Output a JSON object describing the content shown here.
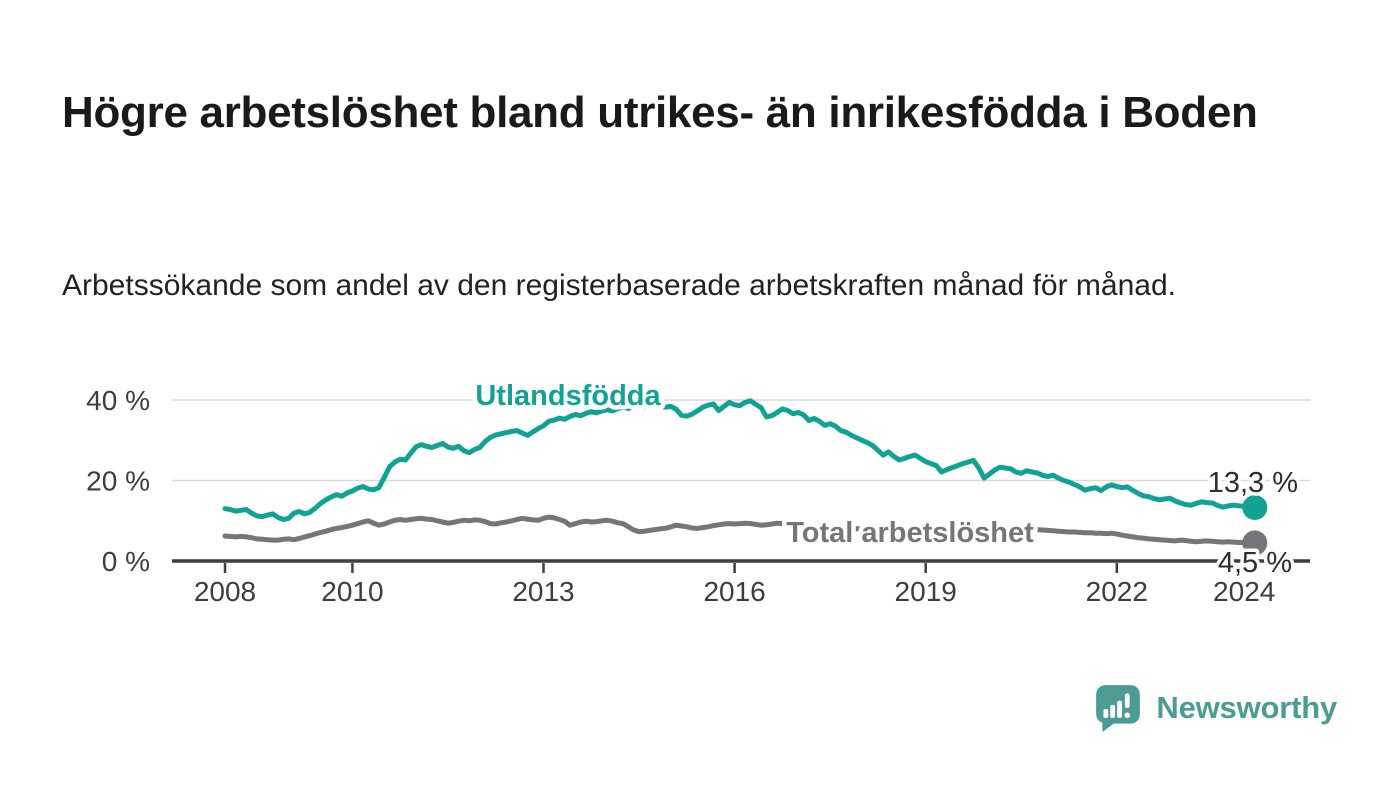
{
  "header": {
    "title": "Högre arbetslöshet bland utrikes- än inrikesfödda i Boden",
    "subtitle": "Arbetssökande som andel av den registerbaserade arbetskraften månad för månad."
  },
  "chart_data": {
    "type": "line",
    "x_unit": "month",
    "x_start": "2008-01",
    "x_end": "2024-03",
    "ylim": [
      0,
      40
    ],
    "grid": "horizontal",
    "y_ticks": [
      {
        "value": 0,
        "label": "0 %"
      },
      {
        "value": 20,
        "label": "20 %"
      },
      {
        "value": 40,
        "label": "40 %"
      }
    ],
    "x_ticks": [
      {
        "value": 2008,
        "label": "2008"
      },
      {
        "value": 2010,
        "label": "2010"
      },
      {
        "value": 2013,
        "label": "2013"
      },
      {
        "value": 2016,
        "label": "2016"
      },
      {
        "value": 2019,
        "label": "2019"
      },
      {
        "value": 2022,
        "label": "2022"
      },
      {
        "value": 2024,
        "label": "2024"
      }
    ],
    "series": [
      {
        "name": "Total arbetslöshet",
        "color": "#76767a",
        "end_label": "4,5 %",
        "end_value": 4.5,
        "values": [
          6.2,
          6.1,
          6.0,
          6.1,
          6.0,
          5.8,
          5.5,
          5.4,
          5.3,
          5.2,
          5.2,
          5.4,
          5.5,
          5.3,
          5.6,
          6.0,
          6.3,
          6.7,
          7.1,
          7.4,
          7.8,
          8.1,
          8.3,
          8.6,
          8.9,
          9.3,
          9.7,
          10.0,
          9.4,
          8.9,
          9.2,
          9.7,
          10.1,
          10.3,
          10.1,
          10.3,
          10.5,
          10.6,
          10.4,
          10.3,
          10.0,
          9.7,
          9.4,
          9.6,
          9.9,
          10.1,
          10.0,
          10.2,
          10.1,
          9.8,
          9.3,
          9.2,
          9.5,
          9.7,
          10.0,
          10.3,
          10.6,
          10.4,
          10.2,
          10.1,
          10.6,
          10.9,
          10.7,
          10.3,
          9.9,
          8.9,
          9.3,
          9.7,
          9.9,
          9.7,
          9.8,
          10.0,
          10.1,
          9.9,
          9.5,
          9.3,
          8.5,
          7.7,
          7.3,
          7.4,
          7.6,
          7.8,
          8.0,
          8.1,
          8.5,
          8.9,
          8.7,
          8.5,
          8.2,
          8.1,
          8.3,
          8.5,
          8.8,
          9.0,
          9.2,
          9.3,
          9.2,
          9.3,
          9.4,
          9.3,
          9.1,
          8.9,
          9.0,
          9.2,
          9.4,
          9.3,
          9.1,
          9.0,
          8.9,
          8.8,
          8.7,
          8.6,
          8.5,
          8.4,
          8.5,
          8.4,
          8.3,
          8.2,
          8.1,
          8.0,
          8.0,
          7.9,
          7.8,
          7.7,
          7.6,
          7.5,
          7.4,
          7.4,
          7.5,
          7.5,
          7.4,
          7.3,
          7.3,
          7.2,
          7.2,
          7.1,
          7.0,
          7.1,
          7.2,
          7.3,
          7.4,
          7.4,
          7.3,
          7.5,
          7.7,
          7.9,
          8.2,
          8.4,
          8.3,
          8.2,
          8.1,
          8.0,
          7.9,
          7.8,
          7.7,
          7.6,
          7.5,
          7.4,
          7.3,
          7.2,
          7.2,
          7.1,
          7.0,
          7.0,
          6.9,
          6.9,
          6.8,
          6.9,
          6.7,
          6.4,
          6.2,
          6.0,
          5.8,
          5.7,
          5.5,
          5.4,
          5.3,
          5.2,
          5.1,
          5.0,
          5.2,
          5.1,
          4.9,
          4.8,
          4.9,
          5.0,
          4.9,
          4.8,
          4.7,
          4.8,
          4.7,
          4.6,
          4.6,
          4.5,
          4.5
        ]
      },
      {
        "name": "Utlandsfödda",
        "color": "#12a294",
        "end_label": "13,3 %",
        "end_value": 13.3,
        "values": [
          13.0,
          12.8,
          12.4,
          12.6,
          12.8,
          11.9,
          11.2,
          11.0,
          11.4,
          11.7,
          10.8,
          10.3,
          10.6,
          11.9,
          12.3,
          11.7,
          12.1,
          13.1,
          14.3,
          15.2,
          15.9,
          16.5,
          16.1,
          16.9,
          17.4,
          18.1,
          18.5,
          17.9,
          17.7,
          18.2,
          20.8,
          23.4,
          24.6,
          25.3,
          25.1,
          26.8,
          28.4,
          28.9,
          28.5,
          28.2,
          28.7,
          29.2,
          28.3,
          28.0,
          28.5,
          27.4,
          26.9,
          27.7,
          28.2,
          29.7,
          30.7,
          31.3,
          31.6,
          31.9,
          32.2,
          32.4,
          31.8,
          31.2,
          32.1,
          32.9,
          33.6,
          34.7,
          35.0,
          35.5,
          35.2,
          35.9,
          36.4,
          36.1,
          36.7,
          37.1,
          36.8,
          37.3,
          37.6,
          37.3,
          37.9,
          38.2,
          37.9,
          38.4,
          38.7,
          38.3,
          38.6,
          38.9,
          38.5,
          38.2,
          38.4,
          37.7,
          36.2,
          36.0,
          36.5,
          37.3,
          38.2,
          38.7,
          39.0,
          37.4,
          38.4,
          39.4,
          38.8,
          38.6,
          39.4,
          39.8,
          38.9,
          38.1,
          35.8,
          36.1,
          36.9,
          37.8,
          37.4,
          36.6,
          36.9,
          36.3,
          34.9,
          35.4,
          34.7,
          33.7,
          34.1,
          33.5,
          32.4,
          32.0,
          31.2,
          30.6,
          30.0,
          29.4,
          28.7,
          27.5,
          26.3,
          27.1,
          26.0,
          25.1,
          25.5,
          26.0,
          26.3,
          25.5,
          24.7,
          24.2,
          23.7,
          22.1,
          22.7,
          23.2,
          23.7,
          24.2,
          24.6,
          25.0,
          23.1,
          20.6,
          21.6,
          22.6,
          23.3,
          23.1,
          22.9,
          22.1,
          21.8,
          22.4,
          22.1,
          21.9,
          21.3,
          21.0,
          21.3,
          20.6,
          20.0,
          19.6,
          19.0,
          18.4,
          17.6,
          18.0,
          18.2,
          17.5,
          18.4,
          18.9,
          18.5,
          18.2,
          18.4,
          17.6,
          16.8,
          16.2,
          16.0,
          15.5,
          15.2,
          15.4,
          15.6,
          14.9,
          14.4,
          14.0,
          13.9,
          14.3,
          14.7,
          14.5,
          14.4,
          13.8,
          13.4,
          13.7,
          13.9,
          13.7,
          13.6,
          13.3,
          13.3
        ]
      }
    ]
  },
  "branding": {
    "name": "Newsworthy",
    "icon": "newsworthy-speech-bubble-bar-chart-icon",
    "color": "#4c9b94"
  }
}
